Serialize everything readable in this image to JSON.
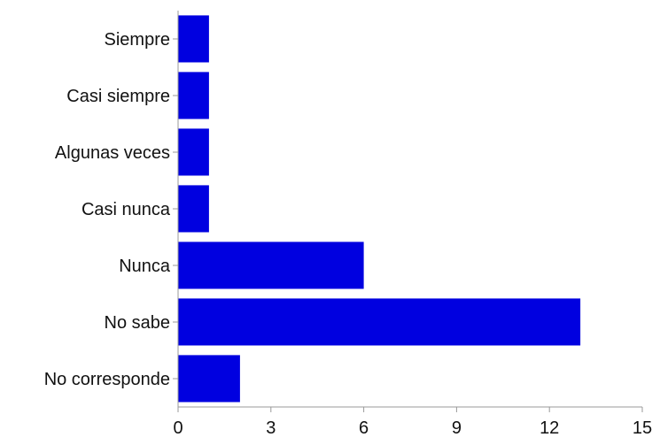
{
  "chart_data": {
    "type": "bar",
    "orientation": "horizontal",
    "categories": [
      "Siempre",
      "Casi siempre",
      "Algunas veces",
      "Casi nunca",
      "Nunca",
      "No sabe",
      "No corresponde"
    ],
    "values": [
      1,
      1,
      1,
      1,
      6,
      13,
      2
    ],
    "title": "",
    "xlabel": "",
    "ylabel": "",
    "xlim": [
      0,
      15
    ],
    "xticks": [
      0,
      3,
      6,
      9,
      12,
      15
    ],
    "grid": false,
    "legend": "none",
    "bar_color": "#0000e0",
    "axis_color": "#999999"
  }
}
